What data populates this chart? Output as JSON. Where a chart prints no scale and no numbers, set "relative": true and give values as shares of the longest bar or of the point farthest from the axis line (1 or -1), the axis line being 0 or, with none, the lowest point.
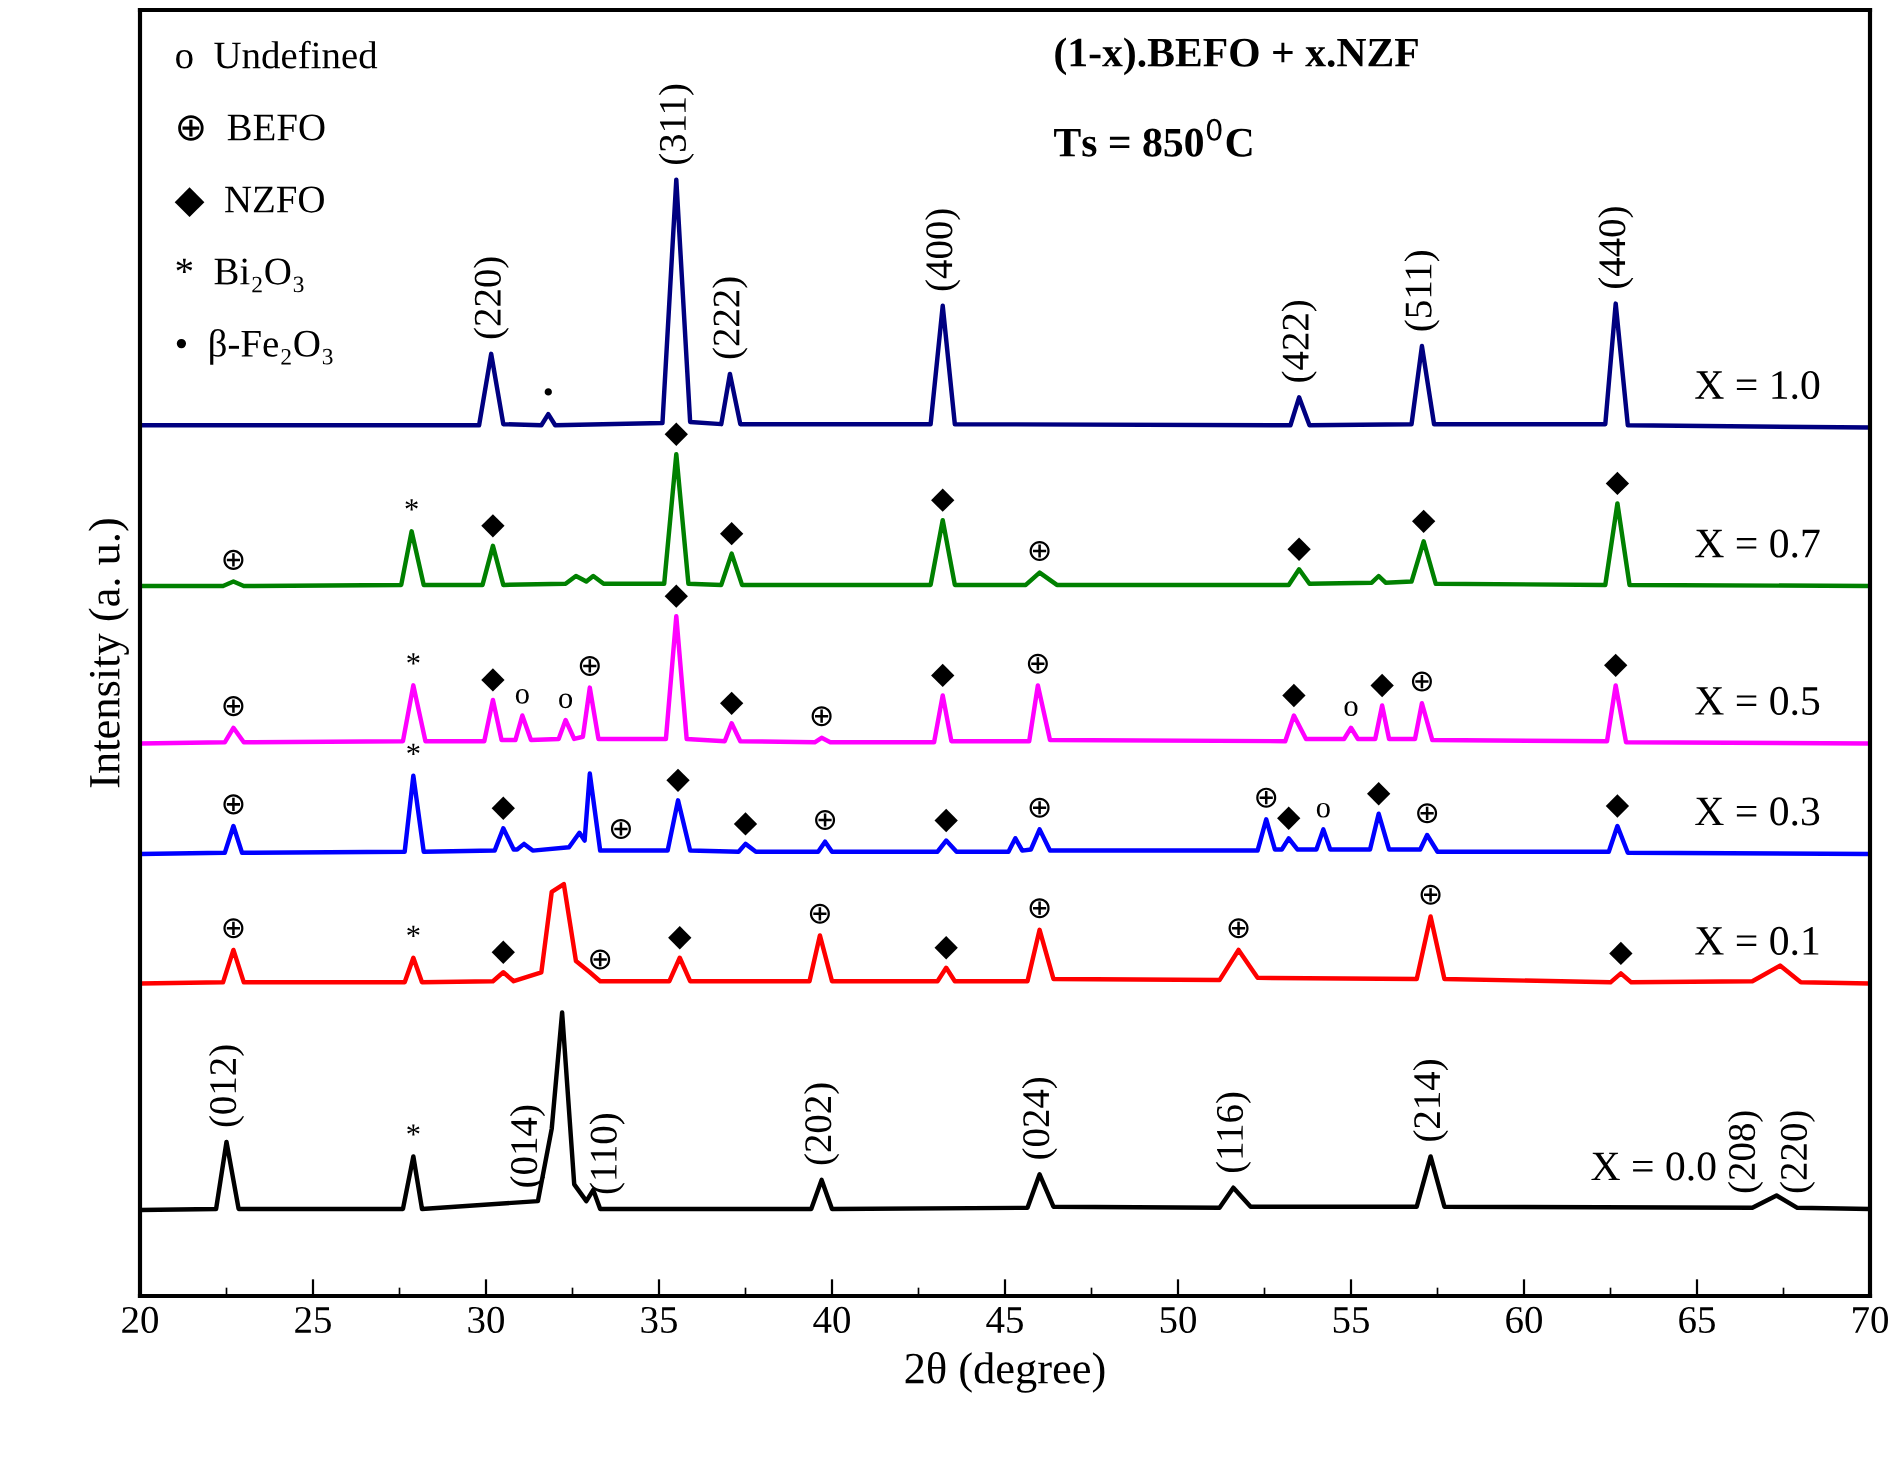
{
  "chart_data": {
    "type": "line",
    "relative": true,
    "xlabel": "2θ (degree)",
    "ylabel": "Intensity (a. u.)",
    "title": "(1-x).BEFO + x.NZF",
    "subtitle": "Ts = 850$^{0}$C",
    "xlim": [
      20,
      70
    ],
    "xticks": [
      20,
      25,
      30,
      35,
      40,
      45,
      50,
      55,
      60,
      65,
      70
    ],
    "tick_labels": "x",
    "grid": false,
    "legend": false,
    "marker": "none",
    "line_style": "solid",
    "series": [
      {
        "name": "X = 1.0",
        "color": "#000080",
        "x": [
          20,
          29.8,
          30.15,
          30.5,
          31.6,
          31.8,
          32.0,
          35.1,
          35.5,
          35.9,
          36.8,
          37.05,
          37.35,
          42.85,
          43.2,
          43.55,
          53.25,
          53.5,
          53.8,
          56.75,
          57.05,
          57.4,
          62.35,
          62.65,
          63.0,
          70
        ],
        "values": [
          0.78,
          0.78,
          0.844,
          0.781,
          0.78,
          0.79,
          0.78,
          0.782,
          1.0,
          0.783,
          0.781,
          0.826,
          0.781,
          0.781,
          0.887,
          0.781,
          0.78,
          0.805,
          0.78,
          0.781,
          0.851,
          0.781,
          0.781,
          0.889,
          0.78,
          0.778
        ]
      },
      {
        "name": "X = 0.7",
        "color": "#008000",
        "x": [
          20,
          22.4,
          22.7,
          23.0,
          27.55,
          27.85,
          28.2,
          29.9,
          30.2,
          30.5,
          32.3,
          32.6,
          32.9,
          33.1,
          33.4,
          35.15,
          35.5,
          35.85,
          36.8,
          37.1,
          37.4,
          42.85,
          43.2,
          43.55,
          45.6,
          46.0,
          46.5,
          53.2,
          53.5,
          53.8,
          55.6,
          55.8,
          56.0,
          56.75,
          57.1,
          57.45,
          62.35,
          62.7,
          63.05,
          70
        ],
        "values": [
          0.636,
          0.636,
          0.64,
          0.636,
          0.637,
          0.685,
          0.637,
          0.637,
          0.672,
          0.637,
          0.638,
          0.645,
          0.64,
          0.645,
          0.638,
          0.638,
          0.754,
          0.638,
          0.637,
          0.665,
          0.637,
          0.637,
          0.695,
          0.637,
          0.637,
          0.648,
          0.637,
          0.637,
          0.651,
          0.638,
          0.639,
          0.645,
          0.639,
          0.64,
          0.676,
          0.638,
          0.637,
          0.71,
          0.637,
          0.636
        ]
      },
      {
        "name": "X = 0.5",
        "color": "#ff00ff",
        "x": [
          20,
          22.45,
          22.7,
          23.0,
          27.6,
          27.9,
          28.25,
          29.95,
          30.2,
          30.45,
          30.85,
          31.05,
          31.3,
          32.1,
          32.3,
          32.55,
          32.8,
          33.0,
          33.25,
          35.2,
          35.5,
          35.8,
          36.9,
          37.1,
          37.35,
          39.5,
          39.7,
          39.95,
          42.95,
          43.2,
          43.45,
          45.7,
          45.95,
          46.3,
          53.1,
          53.35,
          53.7,
          54.8,
          55.0,
          55.2,
          55.7,
          55.9,
          56.1,
          56.85,
          57.05,
          57.35,
          62.4,
          62.65,
          62.95,
          70
        ],
        "values": [
          0.495,
          0.496,
          0.509,
          0.496,
          0.497,
          0.547,
          0.497,
          0.497,
          0.534,
          0.498,
          0.498,
          0.52,
          0.498,
          0.499,
          0.516,
          0.499,
          0.501,
          0.545,
          0.499,
          0.499,
          0.609,
          0.499,
          0.497,
          0.513,
          0.497,
          0.496,
          0.5,
          0.496,
          0.496,
          0.538,
          0.497,
          0.497,
          0.547,
          0.498,
          0.497,
          0.52,
          0.499,
          0.499,
          0.509,
          0.499,
          0.499,
          0.529,
          0.499,
          0.499,
          0.531,
          0.498,
          0.497,
          0.547,
          0.496,
          0.495
        ]
      },
      {
        "name": "X = 0.3",
        "color": "#0000ff",
        "x": [
          20,
          22.45,
          22.7,
          22.95,
          27.65,
          27.9,
          28.2,
          30.25,
          30.5,
          30.8,
          30.9,
          31.1,
          31.35,
          32.4,
          32.7,
          32.85,
          33.0,
          33.3,
          35.25,
          35.55,
          35.9,
          37.3,
          37.5,
          37.8,
          39.6,
          39.8,
          40.0,
          43.05,
          43.3,
          43.6,
          45.1,
          45.3,
          45.5,
          45.75,
          46.0,
          46.3,
          52.3,
          52.55,
          52.8,
          53.0,
          53.2,
          53.45,
          54.0,
          54.2,
          54.4,
          55.55,
          55.8,
          56.1,
          57.0,
          57.2,
          57.5,
          62.45,
          62.7,
          63.0,
          70
        ],
        "values": [
          0.396,
          0.397,
          0.421,
          0.397,
          0.398,
          0.466,
          0.398,
          0.399,
          0.419,
          0.4,
          0.4,
          0.405,
          0.399,
          0.402,
          0.415,
          0.408,
          0.468,
          0.399,
          0.399,
          0.444,
          0.399,
          0.398,
          0.405,
          0.398,
          0.398,
          0.407,
          0.398,
          0.398,
          0.408,
          0.398,
          0.398,
          0.41,
          0.399,
          0.4,
          0.418,
          0.399,
          0.399,
          0.427,
          0.4,
          0.4,
          0.41,
          0.4,
          0.4,
          0.418,
          0.4,
          0.4,
          0.432,
          0.4,
          0.4,
          0.413,
          0.398,
          0.398,
          0.421,
          0.397,
          0.396
        ]
      },
      {
        "name": "X = 0.1",
        "color": "#ff0000",
        "x": [
          20,
          22.4,
          22.7,
          23.0,
          27.65,
          27.9,
          28.15,
          30.2,
          30.5,
          30.8,
          31.6,
          31.9,
          32.25,
          32.6,
          33.0,
          33.3,
          35.3,
          35.6,
          35.9,
          39.35,
          39.65,
          40.0,
          43.05,
          43.3,
          43.55,
          45.65,
          46.0,
          46.4,
          51.2,
          51.75,
          52.3,
          56.9,
          57.3,
          57.7,
          62.5,
          62.8,
          63.1,
          66.6,
          67.4,
          68.0,
          70
        ],
        "values": [
          0.28,
          0.281,
          0.31,
          0.281,
          0.281,
          0.303,
          0.281,
          0.282,
          0.29,
          0.282,
          0.29,
          0.362,
          0.369,
          0.3,
          0.29,
          0.282,
          0.282,
          0.303,
          0.282,
          0.282,
          0.323,
          0.282,
          0.282,
          0.294,
          0.282,
          0.282,
          0.328,
          0.284,
          0.283,
          0.31,
          0.285,
          0.284,
          0.34,
          0.284,
          0.281,
          0.289,
          0.281,
          0.282,
          0.296,
          0.281,
          0.28
        ]
      },
      {
        "name": "X = 0.0",
        "color": "#000000",
        "x": [
          20,
          22.2,
          22.5,
          22.85,
          27.6,
          27.9,
          28.15,
          31.5,
          31.9,
          32.2,
          32.55,
          32.9,
          33.1,
          33.3,
          39.4,
          39.7,
          40.0,
          45.65,
          46.0,
          46.4,
          51.2,
          51.6,
          52.1,
          56.9,
          57.3,
          57.7,
          66.6,
          67.3,
          67.9,
          70
        ],
        "values": [
          0.077,
          0.078,
          0.138,
          0.078,
          0.078,
          0.125,
          0.078,
          0.085,
          0.15,
          0.254,
          0.1,
          0.085,
          0.095,
          0.078,
          0.078,
          0.104,
          0.078,
          0.079,
          0.109,
          0.08,
          0.079,
          0.097,
          0.08,
          0.08,
          0.125,
          0.08,
          0.079,
          0.09,
          0.079,
          0.078
        ]
      }
    ],
    "annotations": [
      "o  Undefined",
      "⊕  BEFO",
      "◆  NZFO",
      "*  Bi₂O₃",
      "•  β-Fe₂O₃",
      {
        "text": "(220)",
        "x": 30.15,
        "y": 0.844
      },
      {
        "text": "(311)",
        "x": 35.5,
        "y": 1.0
      },
      {
        "text": "(222)",
        "x": 37.05,
        "y": 0.826
      },
      {
        "text": "(400)",
        "x": 43.2,
        "y": 0.887
      },
      {
        "text": "(422)",
        "x": 53.5,
        "y": 0.805
      },
      {
        "text": "(511)",
        "x": 57.05,
        "y": 0.851
      },
      {
        "text": "(440)",
        "x": 62.65,
        "y": 0.889
      },
      {
        "text": "•",
        "x": 31.8,
        "y": 0.79
      },
      {
        "text": "⊕",
        "x": 22.7,
        "y": 0.64
      },
      {
        "text": "*",
        "x": 27.85,
        "y": 0.685
      },
      {
        "text": "◆",
        "x": 30.2,
        "y": 0.672
      },
      {
        "text": "◆",
        "x": 35.5,
        "y": 0.754
      },
      {
        "text": "◆",
        "x": 37.1,
        "y": 0.665
      },
      {
        "text": "◆",
        "x": 43.2,
        "y": 0.695
      },
      {
        "text": "⊕",
        "x": 46.0,
        "y": 0.648
      },
      {
        "text": "◆",
        "x": 53.5,
        "y": 0.651
      },
      {
        "text": "◆",
        "x": 57.1,
        "y": 0.676
      },
      {
        "text": "◆",
        "x": 62.7,
        "y": 0.71
      },
      {
        "text": "⊕",
        "x": 22.7,
        "y": 0.509
      },
      {
        "text": "*",
        "x": 27.9,
        "y": 0.547
      },
      {
        "text": "◆",
        "x": 30.2,
        "y": 0.534
      },
      {
        "text": "o",
        "x": 31.05,
        "y": 0.52
      },
      {
        "text": "o",
        "x": 32.3,
        "y": 0.516
      },
      {
        "text": "⊕",
        "x": 33.0,
        "y": 0.545
      },
      {
        "text": "◆",
        "x": 35.5,
        "y": 0.609
      },
      {
        "text": "◆",
        "x": 37.1,
        "y": 0.513
      },
      {
        "text": "⊕",
        "x": 39.7,
        "y": 0.5
      },
      {
        "text": "◆",
        "x": 43.2,
        "y": 0.538
      },
      {
        "text": "⊕",
        "x": 45.95,
        "y": 0.547
      },
      {
        "text": "◆",
        "x": 53.35,
        "y": 0.52
      },
      {
        "text": "o",
        "x": 55.0,
        "y": 0.509
      },
      {
        "text": "◆",
        "x": 55.9,
        "y": 0.529
      },
      {
        "text": "⊕",
        "x": 57.05,
        "y": 0.531
      },
      {
        "text": "◆",
        "x": 62.65,
        "y": 0.547
      },
      {
        "text": "⊕",
        "x": 22.7,
        "y": 0.421
      },
      {
        "text": "*",
        "x": 27.9,
        "y": 0.466
      },
      {
        "text": "◆",
        "x": 30.5,
        "y": 0.419
      },
      {
        "text": "⊕",
        "x": 33.9,
        "y": 0.399
      },
      {
        "text": "◆",
        "x": 35.55,
        "y": 0.444
      },
      {
        "text": "◆",
        "x": 37.5,
        "y": 0.405
      },
      {
        "text": "⊕",
        "x": 39.8,
        "y": 0.407
      },
      {
        "text": "◆",
        "x": 43.3,
        "y": 0.408
      },
      {
        "text": "⊕",
        "x": 46.0,
        "y": 0.418
      },
      {
        "text": "⊕",
        "x": 52.55,
        "y": 0.427
      },
      {
        "text": "◆",
        "x": 53.2,
        "y": 0.41
      },
      {
        "text": "o",
        "x": 54.2,
        "y": 0.418
      },
      {
        "text": "◆",
        "x": 55.8,
        "y": 0.432
      },
      {
        "text": "⊕",
        "x": 57.2,
        "y": 0.413
      },
      {
        "text": "◆",
        "x": 62.7,
        "y": 0.421
      },
      {
        "text": "⊕",
        "x": 22.7,
        "y": 0.31
      },
      {
        "text": "*",
        "x": 27.9,
        "y": 0.303
      },
      {
        "text": "◆",
        "x": 30.5,
        "y": 0.29
      },
      {
        "text": "⊕",
        "x": 33.3,
        "y": 0.282
      },
      {
        "text": "◆",
        "x": 35.6,
        "y": 0.303
      },
      {
        "text": "⊕",
        "x": 39.65,
        "y": 0.323
      },
      {
        "text": "◆",
        "x": 43.3,
        "y": 0.294
      },
      {
        "text": "⊕",
        "x": 46.0,
        "y": 0.328
      },
      {
        "text": "⊕",
        "x": 51.75,
        "y": 0.31
      },
      {
        "text": "⊕",
        "x": 57.3,
        "y": 0.34
      },
      {
        "text": "◆",
        "x": 62.8,
        "y": 0.289
      },
      {
        "text": "(012)",
        "x": 22.5,
        "y": 0.138
      },
      {
        "text": "*",
        "x": 27.9,
        "y": 0.125
      },
      {
        "text": "(014)",
        "x": 31.2,
        "y": 0.084
      },
      {
        "text": "(110)",
        "x": 33.5,
        "y": 0.078
      },
      {
        "text": "(202)",
        "x": 39.7,
        "y": 0.104
      },
      {
        "text": "(024)",
        "x": 46.0,
        "y": 0.109
      },
      {
        "text": "(116)",
        "x": 51.6,
        "y": 0.097
      },
      {
        "text": "(214)",
        "x": 57.3,
        "y": 0.125
      },
      {
        "text": "(208)",
        "x": 66.4,
        "y": 0.079
      },
      {
        "text": "(220)",
        "x": 67.9,
        "y": 0.079
      }
    ]
  }
}
